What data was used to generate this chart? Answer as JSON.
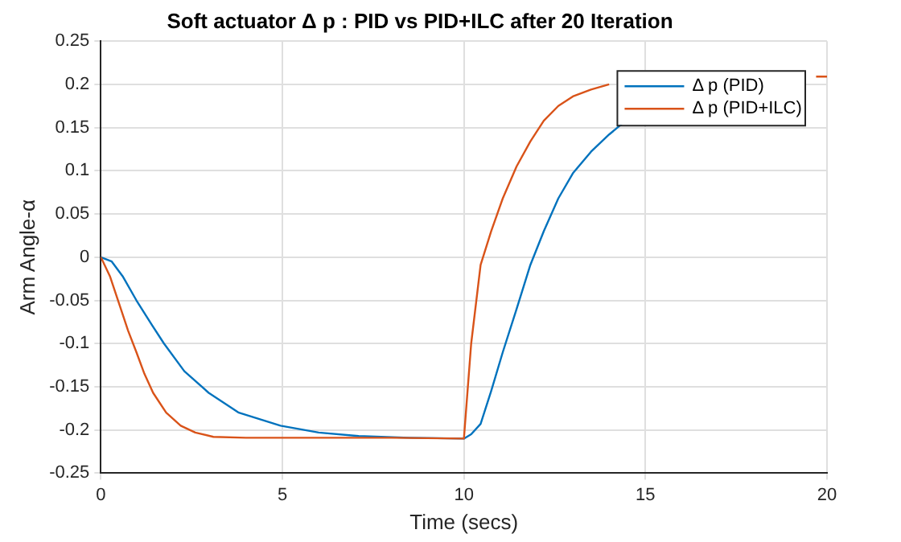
{
  "chart_data": {
    "type": "line",
    "title": "Soft actuator Δ p : PID vs PID+ILC after 20 Iteration",
    "xlabel": "Time (secs)",
    "ylabel": "Arm Angle-α",
    "xlim": [
      0,
      20
    ],
    "xticks": [
      0,
      5,
      10,
      15,
      20
    ],
    "ylim": [
      -0.25,
      0.25
    ],
    "yticks": [
      -0.25,
      -0.2,
      -0.15,
      -0.1,
      -0.05,
      0,
      0.05,
      0.1,
      0.15,
      0.2,
      0.25
    ],
    "grid": true,
    "legend": "top right",
    "marker": "none",
    "line_style": "solid",
    "series": [
      {
        "name": "Δ p (PID)",
        "color": "#0072bd",
        "x": [
          0,
          0.3,
          0.6,
          0.98,
          1.4,
          1.74,
          2.3,
          2.97,
          3.8,
          4.95,
          6,
          7.1,
          8.5,
          10,
          10.2,
          10.46,
          10.75,
          11.07,
          11.45,
          11.83,
          12.2,
          12.6,
          13,
          13.5,
          14,
          14.43
        ],
        "values": [
          0,
          -0.005,
          -0.022,
          -0.05,
          -0.078,
          -0.1,
          -0.132,
          -0.157,
          -0.18,
          -0.195,
          -0.203,
          -0.207,
          -0.209,
          -0.21,
          -0.205,
          -0.193,
          -0.155,
          -0.11,
          -0.06,
          -0.009,
          0.03,
          0.068,
          0.097,
          0.122,
          0.142,
          0.157
        ]
      },
      {
        "name": "Δ p (PID+ILC)",
        "color": "#d95319",
        "x": [
          0,
          0.25,
          0.52,
          0.75,
          0.98,
          1.2,
          1.44,
          1.8,
          2.2,
          2.6,
          3.1,
          4,
          6,
          8,
          10,
          10.2,
          10.46,
          10.75,
          11.07,
          11.45,
          11.83,
          12.2,
          12.6,
          13,
          13.5,
          14,
          15,
          17,
          19.7,
          20
        ],
        "values": [
          0,
          -0.022,
          -0.056,
          -0.085,
          -0.11,
          -0.135,
          -0.157,
          -0.18,
          -0.195,
          -0.203,
          -0.208,
          -0.209,
          -0.209,
          -0.209,
          -0.21,
          -0.1,
          -0.009,
          0.03,
          0.068,
          0.105,
          0.134,
          0.158,
          0.175,
          0.186,
          0.194,
          0.2,
          null,
          null,
          0.209,
          0.209
        ]
      }
    ]
  }
}
